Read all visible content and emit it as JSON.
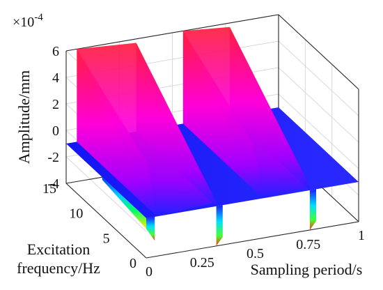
{
  "chart_data": {
    "type": "surface",
    "title": "",
    "xlabel": "Sampling period/s",
    "ylabel_lines": [
      "Excitation",
      "frequency/Hz"
    ],
    "zlabel": "Amplitude/mm",
    "z_exponent": "×10",
    "z_exponent_power": "-4",
    "xlim": [
      0,
      1
    ],
    "ylim": [
      0,
      15
    ],
    "zlim": [
      -4,
      6
    ],
    "x_ticks": [
      "0",
      "0.25",
      "0.5",
      "0.75",
      "1"
    ],
    "y_ticks": [
      "0",
      "5",
      "10",
      "15"
    ],
    "z_ticks": [
      "-4",
      "-2",
      "0",
      "2",
      "4",
      "6"
    ],
    "grid": true,
    "colormap": "hsv",
    "surface": {
      "baseline_amplitude": -1,
      "pulses": [
        {
          "x_start": 0.05,
          "x_end": 0.33,
          "peak_amplitude": 6,
          "min_amplitude": -4
        },
        {
          "x_start": 0.55,
          "x_end": 0.77,
          "peak_amplitude": 6,
          "min_amplitude": -4
        }
      ]
    }
  }
}
